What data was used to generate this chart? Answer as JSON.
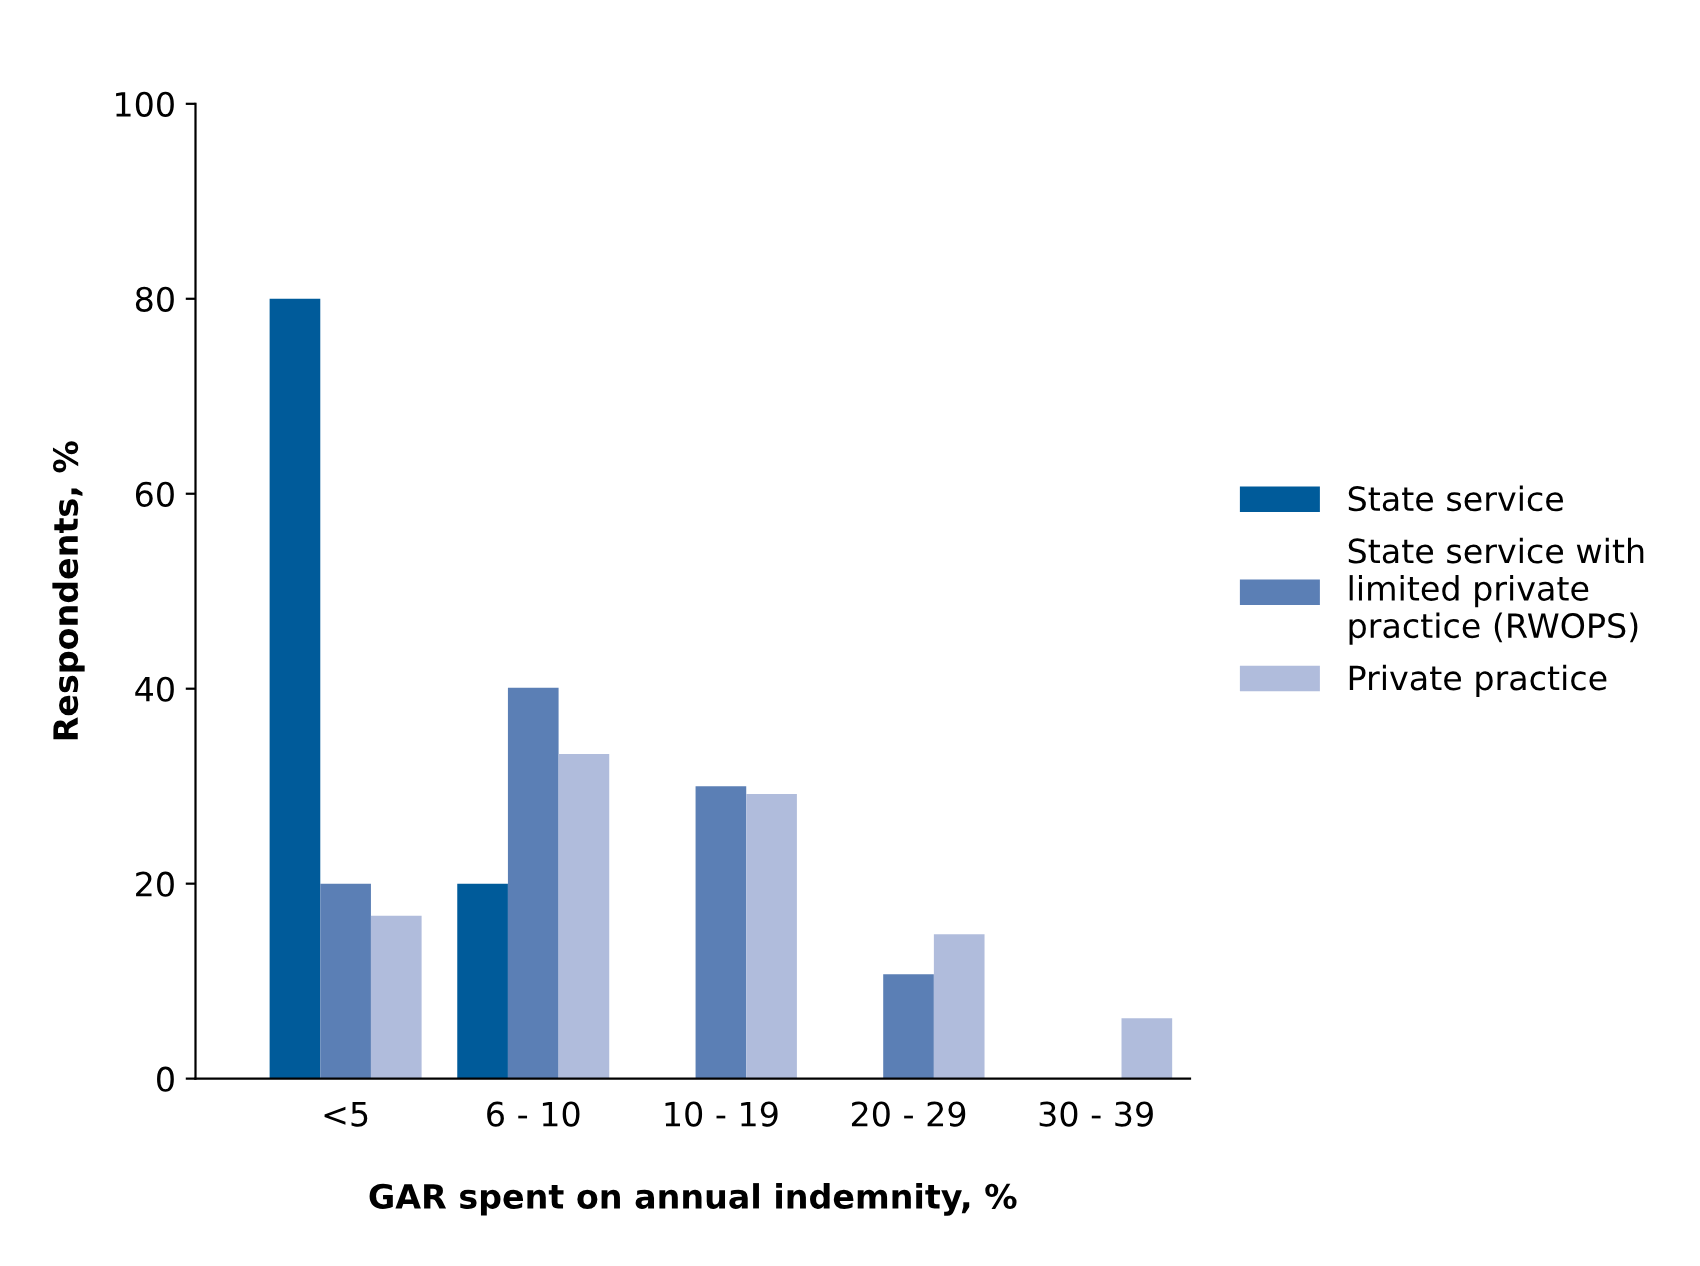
{
  "chart_data": {
    "type": "bar",
    "xlabel": "GAR spent on annual indemnity, %",
    "ylabel": "Respondents, %",
    "categories": [
      "<5",
      "6 - 10",
      "10 - 19",
      "20 - 29",
      "30 - 39"
    ],
    "series": [
      {
        "name": "State service",
        "color": "#005b9a",
        "values": [
          80,
          20,
          null,
          null,
          null
        ]
      },
      {
        "name": "State service with\nlimited private\npractice (RWOPS)",
        "color": "#5b7fb5",
        "values": [
          20,
          40.1,
          30,
          10.7,
          null
        ]
      },
      {
        "name": "Private practice",
        "color": "#b0bcdc",
        "values": [
          16.7,
          33.3,
          29.2,
          14.8,
          6.2
        ]
      }
    ],
    "ylim": [
      0,
      100
    ],
    "yticks": [
      0,
      20,
      40,
      60,
      80,
      100
    ],
    "grid": false,
    "legend": "right"
  }
}
